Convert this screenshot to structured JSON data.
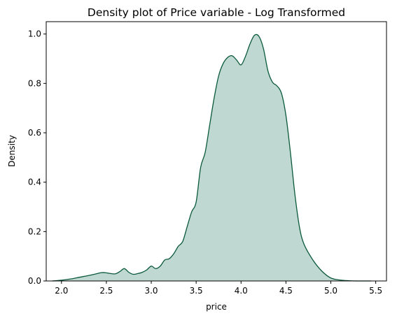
{
  "chart_data": {
    "type": "area",
    "title": "Density plot of Price variable - Log Transformed",
    "xlabel": "price",
    "ylabel": "Density",
    "xlim": [
      1.83,
      5.62
    ],
    "ylim": [
      0,
      1.05
    ],
    "xticks": [
      2.0,
      2.5,
      3.0,
      3.5,
      4.0,
      4.5,
      5.0,
      5.5
    ],
    "xtick_labels": [
      "2.0",
      "2.5",
      "3.0",
      "3.5",
      "4.0",
      "4.5",
      "5.0",
      "5.5"
    ],
    "yticks": [
      0.0,
      0.2,
      0.4,
      0.6,
      0.8,
      1.0
    ],
    "ytick_labels": [
      "0.0",
      "0.2",
      "0.4",
      "0.6",
      "0.8",
      "1.0"
    ],
    "grid": false,
    "colors": {
      "line": "#0b5a3b",
      "fill": "#bfd8d1"
    },
    "series": [
      {
        "x": [
          1.9,
          2.0,
          2.1,
          2.2,
          2.3,
          2.4,
          2.45,
          2.5,
          2.55,
          2.6,
          2.65,
          2.7,
          2.75,
          2.8,
          2.85,
          2.9,
          2.95,
          3.0,
          3.05,
          3.1,
          3.15,
          3.2,
          3.25,
          3.3,
          3.35,
          3.4,
          3.45,
          3.5,
          3.55,
          3.6,
          3.65,
          3.7,
          3.75,
          3.8,
          3.85,
          3.9,
          3.95,
          4.0,
          4.05,
          4.1,
          4.15,
          4.2,
          4.25,
          4.3,
          4.35,
          4.4,
          4.45,
          4.5,
          4.55,
          4.6,
          4.65,
          4.7,
          4.8,
          4.9,
          5.0,
          5.1,
          5.2,
          5.3,
          5.45
        ],
        "y": [
          0.0,
          0.003,
          0.008,
          0.015,
          0.022,
          0.03,
          0.034,
          0.033,
          0.03,
          0.029,
          0.038,
          0.05,
          0.035,
          0.027,
          0.03,
          0.035,
          0.045,
          0.06,
          0.05,
          0.06,
          0.085,
          0.09,
          0.11,
          0.14,
          0.16,
          0.22,
          0.28,
          0.32,
          0.46,
          0.52,
          0.63,
          0.74,
          0.83,
          0.88,
          0.905,
          0.912,
          0.895,
          0.875,
          0.91,
          0.96,
          0.995,
          0.99,
          0.94,
          0.85,
          0.805,
          0.79,
          0.76,
          0.67,
          0.52,
          0.35,
          0.22,
          0.15,
          0.085,
          0.04,
          0.012,
          0.004,
          0.001,
          0.0,
          0.0
        ]
      }
    ]
  }
}
